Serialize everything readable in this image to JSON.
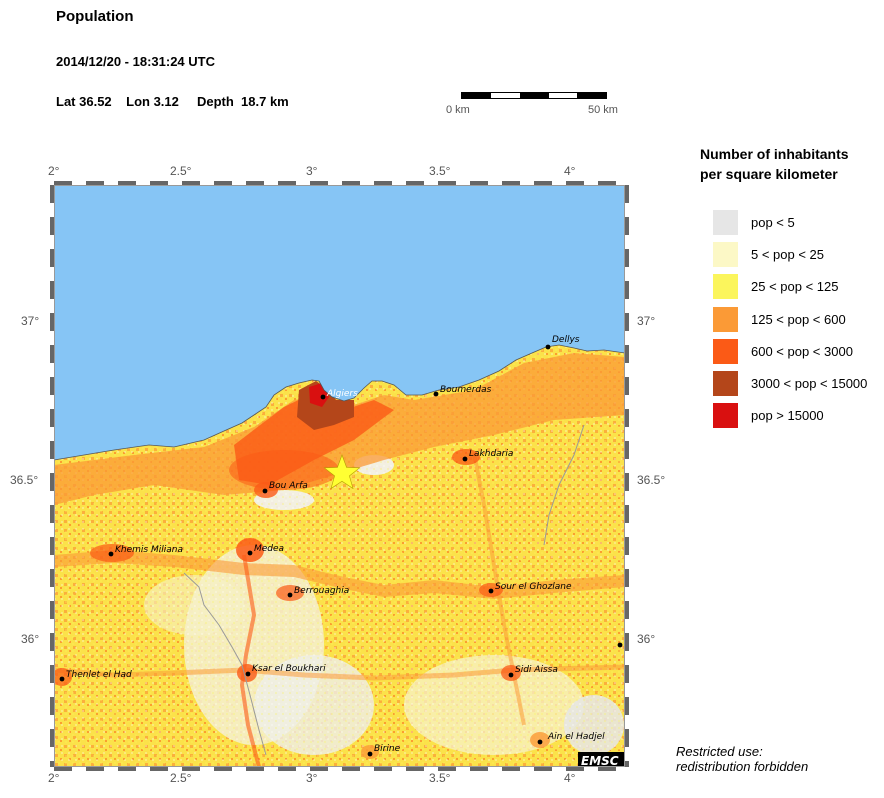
{
  "header": {
    "title": "Population",
    "datetime": "2014/12/20 - 18:31:24 UTC",
    "lat_label": "Lat",
    "lat_value": "36.52",
    "lon_label": "Lon",
    "lon_value": "3.12",
    "depth_label": "Depth",
    "depth_value": "18.7 km"
  },
  "scale_bar": {
    "start_label": "0 km",
    "end_label": "50 km"
  },
  "axes": {
    "lon_ticks": [
      "2°",
      "2.5°",
      "3°",
      "3.5°",
      "4°"
    ],
    "lat_ticks": [
      "37°",
      "36.5°",
      "36°"
    ]
  },
  "legend": {
    "title_line1": "Number of inhabitants",
    "title_line2": "per square kilometer",
    "items": [
      {
        "label": "pop < 5",
        "color": "#e6e6e6"
      },
      {
        "label": "5 < pop < 25",
        "color": "#fcf8c6"
      },
      {
        "label": "25 < pop < 125",
        "color": "#fbf55c"
      },
      {
        "label": "125 < pop < 600",
        "color": "#fb9a36"
      },
      {
        "label": "600 < pop < 3000",
        "color": "#fb5a16"
      },
      {
        "label": "3000 < pop < 15000",
        "color": "#b4461a"
      },
      {
        "label": "pop > 15000",
        "color": "#d91010"
      }
    ]
  },
  "cities": [
    {
      "name": "Dellys"
    },
    {
      "name": "Algiers"
    },
    {
      "name": "Boumerdas"
    },
    {
      "name": "Lakhdaria"
    },
    {
      "name": "Bou Arfa"
    },
    {
      "name": "Khemis Miliana"
    },
    {
      "name": "Medea"
    },
    {
      "name": "Berrouaghia"
    },
    {
      "name": "Sour el Ghozlane"
    },
    {
      "name": "Thenlet el Had"
    },
    {
      "name": "Ksar el Boukhari"
    },
    {
      "name": "Sidi Aissa"
    },
    {
      "name": "Ain el Hadjel"
    },
    {
      "name": "Birine"
    }
  ],
  "epicenter": {
    "lat": 36.52,
    "lon": 3.12
  },
  "watermark": "EMSC",
  "footer": {
    "line1": "Restricted use:",
    "line2": "redistribution forbidden"
  },
  "colors": {
    "sea": "#86c5f5",
    "star": "#ffff33"
  }
}
